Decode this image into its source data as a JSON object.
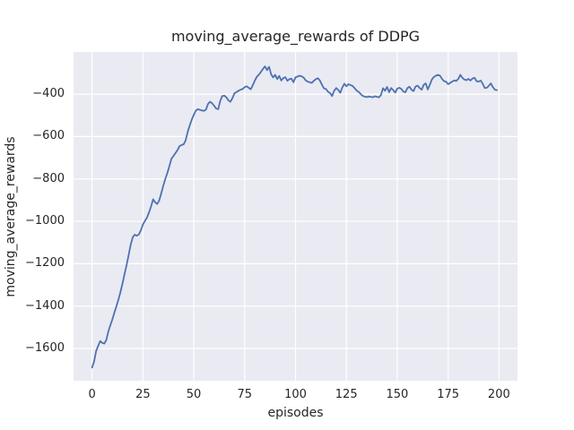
{
  "accent_colors": {
    "axes_background": "#eaeaf2",
    "grid_color": "#ffffff",
    "line_color": "#4c72b0",
    "text_color": "#262626",
    "figure_background": "#ffffff"
  },
  "chart_data": {
    "type": "line",
    "title": "moving_average_rewards of DDPG",
    "xlabel": "episodes",
    "ylabel": "moving_average_rewards",
    "xlim": [
      -9.1,
      209.1
    ],
    "ylim": [
      -1752,
      -201
    ],
    "x_ticks": [
      0,
      25,
      50,
      75,
      100,
      125,
      150,
      175,
      200
    ],
    "x_tick_labels": [
      "0",
      "25",
      "50",
      "75",
      "100",
      "125",
      "150",
      "175",
      "200"
    ],
    "y_ticks": [
      -400,
      -600,
      -800,
      -1000,
      -1200,
      -1400,
      -1600
    ],
    "y_tick_labels": [
      "−400",
      "−600",
      "−800",
      "−1000",
      "−1200",
      "−1400",
      "−1600"
    ],
    "grid": true,
    "legend": false,
    "series": [
      {
        "name": "moving_average_rewards",
        "color": "#4c72b0",
        "x_start": 0,
        "x_step": 1,
        "y": [
          -1690,
          -1662,
          -1612,
          -1588,
          -1565,
          -1573,
          -1577,
          -1560,
          -1520,
          -1490,
          -1462,
          -1430,
          -1400,
          -1368,
          -1332,
          -1292,
          -1248,
          -1205,
          -1158,
          -1110,
          -1075,
          -1063,
          -1068,
          -1062,
          -1042,
          -1015,
          -998,
          -982,
          -958,
          -930,
          -896,
          -910,
          -918,
          -902,
          -868,
          -832,
          -800,
          -772,
          -740,
          -705,
          -692,
          -678,
          -664,
          -645,
          -640,
          -637,
          -618,
          -578,
          -548,
          -520,
          -498,
          -478,
          -471,
          -474,
          -477,
          -479,
          -473,
          -446,
          -436,
          -443,
          -455,
          -468,
          -471,
          -432,
          -409,
          -407,
          -415,
          -429,
          -436,
          -419,
          -396,
          -390,
          -384,
          -379,
          -376,
          -367,
          -363,
          -370,
          -377,
          -358,
          -336,
          -318,
          -308,
          -295,
          -281,
          -269,
          -287,
          -271,
          -306,
          -321,
          -309,
          -329,
          -314,
          -336,
          -324,
          -320,
          -337,
          -329,
          -327,
          -344,
          -321,
          -317,
          -313,
          -316,
          -322,
          -335,
          -341,
          -344,
          -347,
          -337,
          -329,
          -325,
          -336,
          -356,
          -373,
          -376,
          -389,
          -395,
          -409,
          -384,
          -371,
          -380,
          -394,
          -368,
          -351,
          -363,
          -353,
          -357,
          -361,
          -371,
          -383,
          -389,
          -399,
          -408,
          -412,
          -414,
          -411,
          -413,
          -415,
          -410,
          -413,
          -415,
          -404,
          -372,
          -384,
          -366,
          -391,
          -371,
          -381,
          -393,
          -374,
          -370,
          -375,
          -388,
          -391,
          -371,
          -365,
          -379,
          -386,
          -364,
          -360,
          -371,
          -379,
          -356,
          -349,
          -378,
          -356,
          -331,
          -319,
          -313,
          -309,
          -313,
          -328,
          -339,
          -341,
          -353,
          -347,
          -341,
          -335,
          -338,
          -328,
          -309,
          -323,
          -331,
          -334,
          -328,
          -336,
          -326,
          -323,
          -339,
          -341,
          -336,
          -351,
          -371,
          -370,
          -361,
          -349,
          -367,
          -379,
          -381
        ]
      }
    ]
  }
}
